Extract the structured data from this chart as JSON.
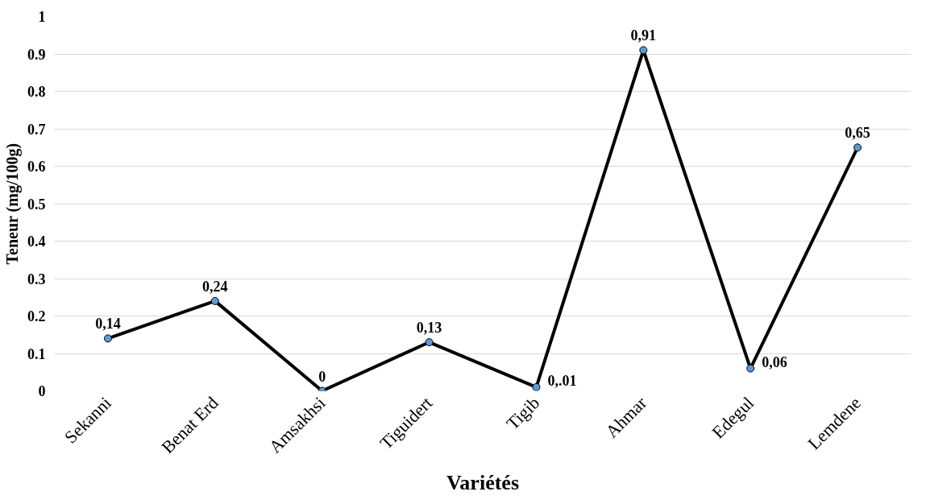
{
  "chart_data": {
    "type": "line",
    "xlabel": "Variétés",
    "ylabel": "Teneur (mg/100g)",
    "categories": [
      "Sekanni",
      "Benat Erd",
      "Amsakhsi",
      "Tiguidert",
      "Tigib",
      "Ahmar",
      "Edegul",
      "Lemdene"
    ],
    "series": [
      {
        "color": "#000000",
        "colors": [
          "#5b9bd5",
          "#5b9bd5",
          "#5b9bd5",
          "#5b9bd5",
          "#5b9bd5",
          "#5b9bd5",
          "#5b9bd5",
          "#5b9bd5"
        ],
        "values": [
          0.14,
          0.24,
          0,
          0.13,
          0.01,
          0.91,
          0.06,
          0.65
        ]
      }
    ],
    "value_labels": [
      "0,14",
      "0,24",
      "0",
      "0,13",
      "0,.01",
      "0,91",
      "0,06",
      "0,65"
    ],
    "ylim": [
      0,
      1
    ],
    "yticks": [
      0,
      {
        "value": 0.1,
        "label": "0.1"
      },
      {
        "value": 0.2,
        "label": "0.2"
      },
      {
        "value": 0.3,
        "label": "0.3"
      },
      {
        "value": 0.4,
        "label": "0.4"
      },
      {
        "value": 0.5,
        "label": "0.5"
      },
      {
        "value": 0.6,
        "label": "0.6"
      },
      {
        "value": 0.7,
        "label": "0.7"
      },
      {
        "value": 0.8,
        "label": "0.8"
      },
      {
        "value": 0.9,
        "label": "0.9"
      },
      1
    ],
    "grid": "y",
    "marker": "circle",
    "line_style": "solid"
  }
}
